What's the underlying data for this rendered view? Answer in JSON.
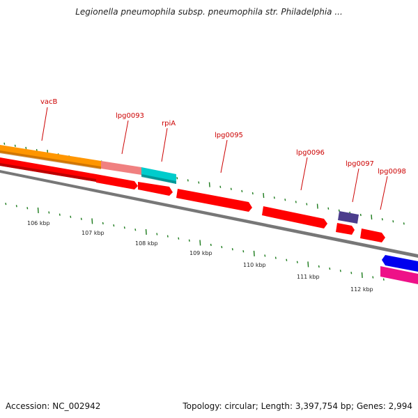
{
  "header": {
    "title": "Legionella pneumophila subsp. pneumophila str. Philadelphia ..."
  },
  "footer": {
    "accession": "Accession: NC_002942",
    "summary": "Topology: circular; Length: 3,397,754 bp; Genes: 2,994"
  },
  "scale": {
    "labels": [
      "106 kbp",
      "107 kbp",
      "108 kbp",
      "109 kbp",
      "110 kbp",
      "111 kbp",
      "112 kbp"
    ]
  },
  "genes": [
    {
      "label": "vacB",
      "color": "#ff9000",
      "color2": "#ff0000"
    },
    {
      "label": "lpg0093",
      "color": "#f08080"
    },
    {
      "label": "rpiA",
      "color": "#00cccc"
    },
    {
      "label": "lpg0095",
      "color": "#ff0000"
    },
    {
      "label": "lpg0096",
      "color": "#ff0000"
    },
    {
      "label": "lpg0097",
      "color": "#4b3d8c"
    },
    {
      "label": "lpg0098",
      "color": "#ff0000"
    }
  ],
  "extra_features": [
    {
      "name": "blue-feature",
      "color": "#0000ee"
    },
    {
      "name": "pink-feature",
      "color": "#ee1188"
    }
  ],
  "colors": {
    "label": "#cc0000",
    "tick": "#1a7a1a",
    "backbone": "#777777"
  }
}
